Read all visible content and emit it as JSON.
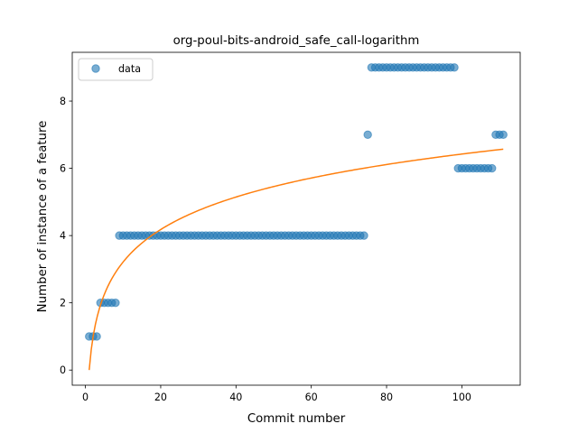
{
  "chart_data": {
    "type": "scatter",
    "title": "org-poul-bits-android_safe_call-logarithm",
    "xlabel": "Commit number",
    "ylabel": "Number of instance of a feature",
    "xlim": [
      -3.5,
      115.5
    ],
    "ylim": [
      -0.45,
      9.45
    ],
    "xticks": [
      0,
      20,
      40,
      60,
      80,
      100
    ],
    "yticks": [
      0,
      2,
      4,
      6,
      8
    ],
    "grid": false,
    "legend": {
      "position": "top-left",
      "entries": [
        "data"
      ]
    },
    "colors": {
      "data": "#1f77b4",
      "fit": "#ff7f0e"
    },
    "series": [
      {
        "name": "data",
        "kind": "scatter",
        "x": [
          1,
          2,
          3,
          4,
          5,
          6,
          7,
          8,
          9,
          10,
          11,
          12,
          13,
          14,
          15,
          16,
          17,
          18,
          19,
          20,
          21,
          22,
          23,
          24,
          25,
          26,
          27,
          28,
          29,
          30,
          31,
          32,
          33,
          34,
          35,
          36,
          37,
          38,
          39,
          40,
          41,
          42,
          43,
          44,
          45,
          46,
          47,
          48,
          49,
          50,
          51,
          52,
          53,
          54,
          55,
          56,
          57,
          58,
          59,
          60,
          61,
          62,
          63,
          64,
          65,
          66,
          67,
          68,
          69,
          70,
          71,
          72,
          73,
          74,
          75,
          76,
          77,
          78,
          79,
          80,
          81,
          82,
          83,
          84,
          85,
          86,
          87,
          88,
          89,
          90,
          91,
          92,
          93,
          94,
          95,
          96,
          97,
          98,
          99,
          100,
          101,
          102,
          103,
          104,
          105,
          106,
          107,
          108,
          109,
          110,
          111
        ],
        "y": [
          1,
          1,
          1,
          2,
          2,
          2,
          2,
          2,
          4,
          4,
          4,
          4,
          4,
          4,
          4,
          4,
          4,
          4,
          4,
          4,
          4,
          4,
          4,
          4,
          4,
          4,
          4,
          4,
          4,
          4,
          4,
          4,
          4,
          4,
          4,
          4,
          4,
          4,
          4,
          4,
          4,
          4,
          4,
          4,
          4,
          4,
          4,
          4,
          4,
          4,
          4,
          4,
          4,
          4,
          4,
          4,
          4,
          4,
          4,
          4,
          4,
          4,
          4,
          4,
          4,
          4,
          4,
          4,
          4,
          4,
          4,
          4,
          4,
          4,
          7,
          9,
          9,
          9,
          9,
          9,
          9,
          9,
          9,
          9,
          9,
          9,
          9,
          9,
          9,
          9,
          9,
          9,
          9,
          9,
          9,
          9,
          9,
          9,
          6,
          6,
          6,
          6,
          6,
          6,
          6,
          6,
          6,
          6,
          7,
          7,
          7
        ]
      },
      {
        "kind": "line",
        "model": "logarithmic",
        "x_range": [
          1,
          111
        ],
        "coefficients": {
          "a": 1.395,
          "b": 0.0
        }
      }
    ]
  }
}
